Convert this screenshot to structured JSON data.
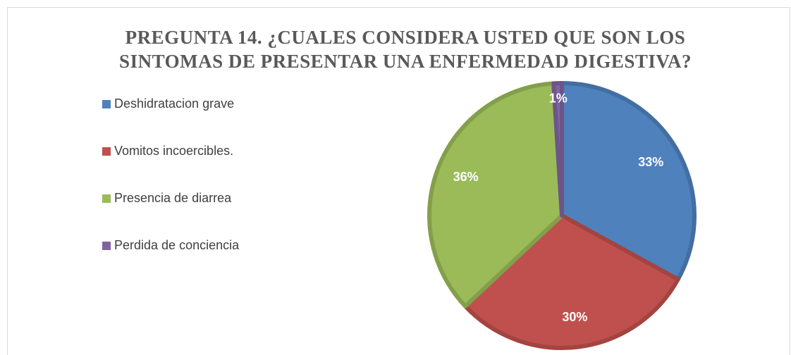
{
  "chart_data": {
    "type": "pie",
    "title": "PREGUNTA 14. ¿CUALES CONSIDERA USTED QUE SON LOS SINTOMAS DE PRESENTAR UNA ENFERMEDAD DIGESTIVA?",
    "categories": [
      "Deshidratacion grave",
      "Vomitos incoercibles.",
      "Presencia de diarrea",
      "Perdida de conciencia"
    ],
    "values": [
      33,
      30,
      36,
      1
    ],
    "value_labels": [
      "33%",
      "30%",
      "36%",
      "1%"
    ],
    "colors": [
      "#4f81bd",
      "#c0504d",
      "#9bbb59",
      "#8064a2"
    ],
    "legend": "left"
  }
}
